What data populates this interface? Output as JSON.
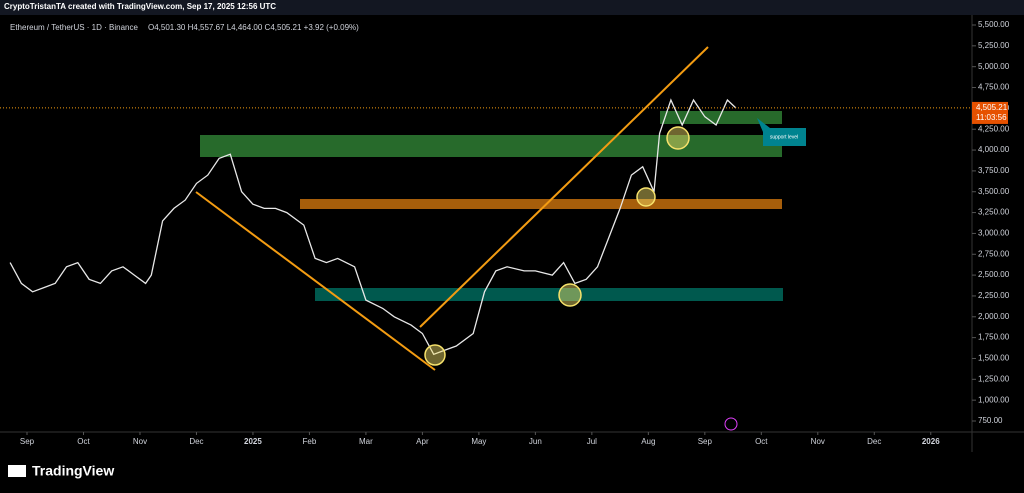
{
  "chart_data": {
    "type": "line",
    "header": "CryptoTristanTA created with TradingView.com, Sep 17, 2025 12:56 UTC",
    "title": "Ethereum / TetherUS · 1D · Binance",
    "ohlc": "O4,501.30 H4,557.67 L4,464.00 C4,505.21 +3.92 (+0.09%)",
    "annotation": "support level",
    "brand": "TradingView",
    "countdown": "11:03:56",
    "last_price": {
      "value": 4505.21,
      "label": "4,505.21"
    },
    "color": "#e8e8e8",
    "x": [
      -0.3,
      -0.1,
      0.1,
      0.3,
      0.5,
      0.7,
      0.9,
      1.1,
      1.3,
      1.5,
      1.7,
      1.9,
      2.1,
      2.2,
      2.4,
      2.6,
      2.8,
      3.0,
      3.2,
      3.4,
      3.6,
      3.8,
      4.0,
      4.2,
      4.4,
      4.6,
      4.9,
      5.1,
      5.3,
      5.5,
      5.8,
      6.0,
      6.3,
      6.5,
      6.8,
      7.0,
      7.2,
      7.4,
      7.6,
      7.9,
      8.1,
      8.3,
      8.5,
      8.8,
      9.0,
      9.3,
      9.5,
      9.7,
      9.9,
      10.1,
      10.3,
      10.5,
      10.7,
      10.9,
      11.1,
      11.2,
      11.4,
      11.6,
      11.8,
      12.0,
      12.2,
      12.4,
      12.55
    ],
    "values": [
      2650,
      2400,
      2300,
      2350,
      2400,
      2600,
      2650,
      2450,
      2400,
      2550,
      2600,
      2500,
      2400,
      2500,
      3150,
      3300,
      3400,
      3600,
      3700,
      3900,
      3950,
      3500,
      3350,
      3300,
      3300,
      3250,
      3100,
      2700,
      2650,
      2700,
      2600,
      2200,
      2100,
      2000,
      1900,
      1800,
      1550,
      1600,
      1650,
      1800,
      2300,
      2550,
      2600,
      2550,
      2550,
      2500,
      2650,
      2400,
      2450,
      2600,
      2950,
      3300,
      3700,
      3800,
      3500,
      4200,
      4600,
      4300,
      4600,
      4400,
      4300,
      4600,
      4505
    ],
    "xlim": [
      -0.478,
      16.73
    ],
    "xticks": [
      {
        "value": 0,
        "label": "Sep"
      },
      {
        "value": 1,
        "label": "Oct"
      },
      {
        "value": 2,
        "label": "Nov"
      },
      {
        "value": 3,
        "label": "Dec"
      },
      {
        "value": 4,
        "label": "2025"
      },
      {
        "value": 5,
        "label": "Feb"
      },
      {
        "value": 6,
        "label": "Mar"
      },
      {
        "value": 7,
        "label": "Apr"
      },
      {
        "value": 8,
        "label": "May"
      },
      {
        "value": 9,
        "label": "Jun"
      },
      {
        "value": 10,
        "label": "Jul"
      },
      {
        "value": 11,
        "label": "Aug"
      },
      {
        "value": 12,
        "label": "Sep"
      },
      {
        "value": 13,
        "label": "Oct"
      },
      {
        "value": 14,
        "label": "Nov"
      },
      {
        "value": 15,
        "label": "Dec"
      },
      {
        "value": 16,
        "label": "2026"
      }
    ],
    "ylim": [
      618,
      5620
    ],
    "yticks": [
      {
        "value": 750,
        "label": "750.00"
      },
      {
        "value": 1000,
        "label": "1,000.00"
      },
      {
        "value": 1250,
        "label": "1,250.00"
      },
      {
        "value": 1500,
        "label": "1,500.00"
      },
      {
        "value": 1750,
        "label": "1,750.00"
      },
      {
        "value": 2000,
        "label": "2,000.00"
      },
      {
        "value": 2250,
        "label": "2,250.00"
      },
      {
        "value": 2500,
        "label": "2,500.00"
      },
      {
        "value": 2750,
        "label": "2,750.00"
      },
      {
        "value": 3000,
        "label": "3,000.00"
      },
      {
        "value": 3250,
        "label": "3,250.00"
      },
      {
        "value": 3500,
        "label": "3,500.00"
      },
      {
        "value": 3750,
        "label": "3,750.00"
      },
      {
        "value": 4000,
        "label": "4,000.00"
      },
      {
        "value": 4250,
        "label": "4,250.00"
      },
      {
        "value": 4500,
        "label": "4,500.00"
      },
      {
        "value": 4750,
        "label": "4,750.00"
      },
      {
        "value": 5000,
        "label": "5,000.00"
      },
      {
        "value": 5250,
        "label": "5,250.00"
      },
      {
        "value": 5500,
        "label": "5,500.00"
      }
    ]
  }
}
